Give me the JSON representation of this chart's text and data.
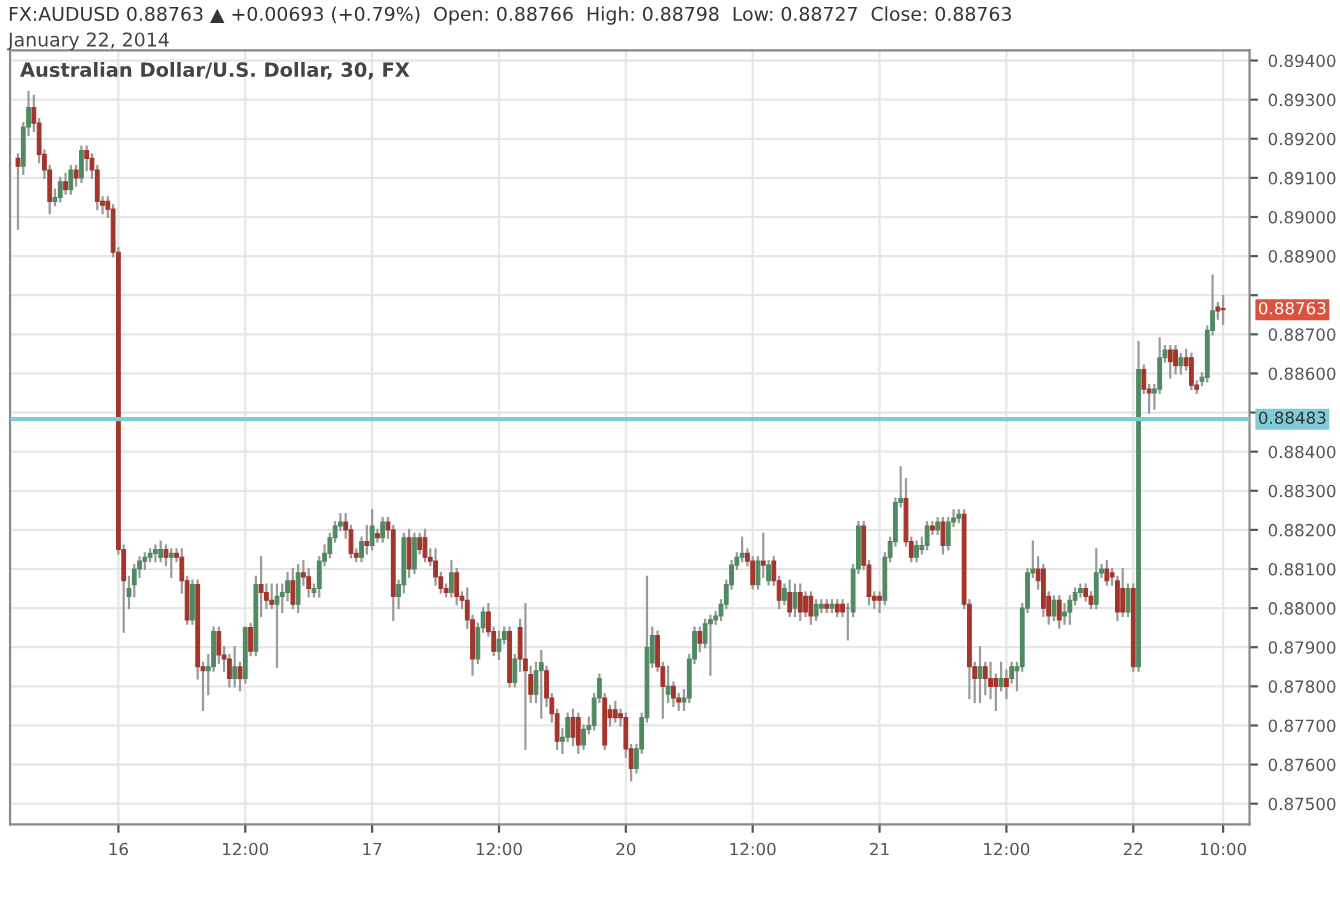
{
  "chart_data": {
    "type": "candlestick",
    "title": "FX:AUDUSD 0.88763 ▲ +0.00693 (+0.79%)  Open: 0.88766  High: 0.88798  Low: 0.88727  Close: 0.88763",
    "subtitle": "January 22, 2014",
    "annotations": [
      "Australian Dollar/U.S. Dollar, 30, FX",
      "0.88763"
    ],
    "categories": [
      null,
      null,
      null,
      null,
      null,
      null,
      null,
      null,
      null,
      null,
      null,
      null,
      null,
      null,
      null,
      null,
      null,
      null,
      null,
      "16",
      null,
      null,
      null,
      null,
      null,
      null,
      null,
      null,
      null,
      null,
      null,
      null,
      null,
      null,
      null,
      null,
      null,
      null,
      null,
      null,
      null,
      null,
      null,
      "12:00",
      null,
      null,
      null,
      null,
      null,
      null,
      null,
      null,
      null,
      null,
      null,
      null,
      null,
      null,
      null,
      null,
      null,
      null,
      null,
      null,
      null,
      null,
      null,
      "17",
      null,
      null,
      null,
      null,
      null,
      null,
      null,
      null,
      null,
      null,
      null,
      null,
      null,
      null,
      null,
      null,
      null,
      null,
      null,
      null,
      null,
      null,
      null,
      "12:00",
      null,
      null,
      null,
      null,
      null,
      null,
      null,
      null,
      null,
      null,
      null,
      null,
      null,
      null,
      null,
      null,
      null,
      null,
      null,
      null,
      null,
      null,
      null,
      "20",
      null,
      null,
      null,
      null,
      null,
      null,
      null,
      null,
      null,
      null,
      null,
      null,
      null,
      null,
      null,
      null,
      null,
      null,
      null,
      null,
      null,
      null,
      null,
      "12:00",
      null,
      null,
      null,
      null,
      null,
      null,
      null,
      null,
      null,
      null,
      null,
      null,
      null,
      null,
      null,
      null,
      null,
      null,
      null,
      null,
      null,
      null,
      null,
      "21",
      null,
      null,
      null,
      null,
      null,
      null,
      null,
      null,
      null,
      null,
      null,
      null,
      null,
      null,
      null,
      null,
      null,
      null,
      null,
      null,
      null,
      null,
      null,
      "12:00",
      null,
      null,
      null,
      null,
      null,
      null,
      null,
      null,
      null,
      null,
      null,
      null,
      null,
      null,
      null,
      null,
      null,
      null,
      null,
      null,
      null,
      null,
      null,
      "22",
      null,
      null,
      null,
      null,
      null,
      null,
      null,
      null,
      null,
      null,
      null,
      null,
      null,
      null,
      null,
      null,
      "10:00"
    ],
    "ohlc": [
      [
        0.8915,
        0.8916,
        0.8897,
        0.8913
      ],
      [
        0.8913,
        0.8924,
        0.8911,
        0.8923
      ],
      [
        0.8923,
        0.8932,
        0.8921,
        0.8928
      ],
      [
        0.8928,
        0.8931,
        0.8922,
        0.8924
      ],
      [
        0.8924,
        0.8925,
        0.8914,
        0.8916
      ],
      [
        0.8916,
        0.8917,
        0.891,
        0.8912
      ],
      [
        0.8912,
        0.8913,
        0.8901,
        0.8904
      ],
      [
        0.8904,
        0.8907,
        0.8903,
        0.8905
      ],
      [
        0.8905,
        0.891,
        0.8904,
        0.8909
      ],
      [
        0.8909,
        0.8911,
        0.8906,
        0.8907
      ],
      [
        0.8907,
        0.8913,
        0.8906,
        0.8912
      ],
      [
        0.8912,
        0.8913,
        0.8908,
        0.891
      ],
      [
        0.891,
        0.8918,
        0.8909,
        0.8917
      ],
      [
        0.8917,
        0.8918,
        0.8912,
        0.8915
      ],
      [
        0.8915,
        0.8916,
        0.891,
        0.8912
      ],
      [
        0.8912,
        0.8913,
        0.8902,
        0.8904
      ],
      [
        0.8904,
        0.8905,
        0.8901,
        0.8903
      ],
      [
        0.8904,
        0.8905,
        0.89,
        0.8902
      ],
      [
        0.8902,
        0.8903,
        0.889,
        0.8891
      ],
      [
        0.8891,
        0.8892,
        0.8814,
        0.8815
      ],
      [
        0.8815,
        0.8816,
        0.8794,
        0.8807
      ],
      [
        0.8803,
        0.8808,
        0.88,
        0.8805
      ],
      [
        0.8806,
        0.8811,
        0.8803,
        0.881
      ],
      [
        0.881,
        0.8813,
        0.8808,
        0.8812
      ],
      [
        0.8812,
        0.8814,
        0.881,
        0.8813
      ],
      [
        0.8813,
        0.8815,
        0.8812,
        0.8814
      ],
      [
        0.8814,
        0.8816,
        0.8812,
        0.8815
      ],
      [
        0.8813,
        0.8817,
        0.8812,
        0.8815
      ],
      [
        0.8815,
        0.8816,
        0.8811,
        0.8813
      ],
      [
        0.8813,
        0.8815,
        0.8808,
        0.8814
      ],
      [
        0.8814,
        0.8815,
        0.8812,
        0.8813
      ],
      [
        0.8813,
        0.8815,
        0.8804,
        0.8807
      ],
      [
        0.8807,
        0.8808,
        0.8796,
        0.8797
      ],
      [
        0.8797,
        0.8807,
        0.8796,
        0.8806
      ],
      [
        0.8806,
        0.8807,
        0.8782,
        0.8785
      ],
      [
        0.8785,
        0.8786,
        0.8774,
        0.8784
      ],
      [
        0.8784,
        0.8788,
        0.8778,
        0.8785
      ],
      [
        0.8785,
        0.8795,
        0.8784,
        0.8794
      ],
      [
        0.8794,
        0.8795,
        0.8786,
        0.8788
      ],
      [
        0.8788,
        0.879,
        0.8784,
        0.8787
      ],
      [
        0.8787,
        0.8788,
        0.878,
        0.8782
      ],
      [
        0.8782,
        0.879,
        0.878,
        0.8785
      ],
      [
        0.8785,
        0.8786,
        0.8779,
        0.8782
      ],
      [
        0.8782,
        0.8795,
        0.8781,
        0.8795
      ],
      [
        0.8795,
        0.8796,
        0.8788,
        0.8789
      ],
      [
        0.8789,
        0.8808,
        0.8788,
        0.8806
      ],
      [
        0.8806,
        0.8813,
        0.8798,
        0.8804
      ],
      [
        0.8804,
        0.8806,
        0.88,
        0.8802
      ],
      [
        0.8802,
        0.8806,
        0.88,
        0.8801
      ],
      [
        0.8801,
        0.8806,
        0.8785,
        0.8803
      ],
      [
        0.8803,
        0.8806,
        0.8799,
        0.8804
      ],
      [
        0.8804,
        0.8809,
        0.8802,
        0.8807
      ],
      [
        0.8807,
        0.881,
        0.88,
        0.8801
      ],
      [
        0.8801,
        0.8811,
        0.8799,
        0.8809
      ],
      [
        0.8809,
        0.8812,
        0.8806,
        0.8808
      ],
      [
        0.8808,
        0.881,
        0.8803,
        0.8805
      ],
      [
        0.8804,
        0.8806,
        0.8803,
        0.8805
      ],
      [
        0.8805,
        0.8813,
        0.8803,
        0.8812
      ],
      [
        0.8812,
        0.8816,
        0.8811,
        0.8814
      ],
      [
        0.8814,
        0.8819,
        0.8813,
        0.8818
      ],
      [
        0.8818,
        0.8822,
        0.8817,
        0.8821
      ],
      [
        0.8821,
        0.8824,
        0.882,
        0.8822
      ],
      [
        0.8822,
        0.8824,
        0.8818,
        0.882
      ],
      [
        0.882,
        0.8821,
        0.8813,
        0.8814
      ],
      [
        0.8814,
        0.8815,
        0.8812,
        0.8813
      ],
      [
        0.8813,
        0.8818,
        0.8812,
        0.8817
      ],
      [
        0.8817,
        0.8821,
        0.8814,
        0.8816
      ],
      [
        0.8816,
        0.8825,
        0.8815,
        0.8821
      ],
      [
        0.8819,
        0.882,
        0.8817,
        0.8818
      ],
      [
        0.8818,
        0.8823,
        0.8817,
        0.8822
      ],
      [
        0.8822,
        0.8823,
        0.8818,
        0.882
      ],
      [
        0.882,
        0.8821,
        0.8797,
        0.8803
      ],
      [
        0.8803,
        0.8807,
        0.88,
        0.8806
      ],
      [
        0.8806,
        0.8819,
        0.8804,
        0.8818
      ],
      [
        0.8818,
        0.882,
        0.8808,
        0.881
      ],
      [
        0.881,
        0.8819,
        0.8809,
        0.8818
      ],
      [
        0.8818,
        0.8819,
        0.8814,
        0.8815
      ],
      [
        0.8818,
        0.882,
        0.8812,
        0.8813
      ],
      [
        0.8813,
        0.8815,
        0.8811,
        0.8812
      ],
      [
        0.8812,
        0.8815,
        0.8806,
        0.8808
      ],
      [
        0.8808,
        0.8809,
        0.8804,
        0.8805
      ],
      [
        0.8805,
        0.8806,
        0.8803,
        0.8804
      ],
      [
        0.8804,
        0.8812,
        0.8803,
        0.8809
      ],
      [
        0.8809,
        0.881,
        0.8801,
        0.8803
      ],
      [
        0.8803,
        0.8804,
        0.88,
        0.8802
      ],
      [
        0.8802,
        0.8805,
        0.8795,
        0.8797
      ],
      [
        0.8797,
        0.8798,
        0.8783,
        0.8787
      ],
      [
        0.8787,
        0.8796,
        0.8786,
        0.8795
      ],
      [
        0.8795,
        0.88,
        0.8794,
        0.8799
      ],
      [
        0.8799,
        0.8801,
        0.8793,
        0.8794
      ],
      [
        0.8794,
        0.8795,
        0.8788,
        0.8789
      ],
      [
        0.8789,
        0.8794,
        0.8787,
        0.8792
      ],
      [
        0.8792,
        0.8795,
        0.8791,
        0.8794
      ],
      [
        0.8794,
        0.8795,
        0.878,
        0.8781
      ],
      [
        0.8781,
        0.8788,
        0.878,
        0.8787
      ],
      [
        0.8795,
        0.8797,
        0.8784,
        0.8787
      ],
      [
        0.8787,
        0.8801,
        0.8764,
        0.8784
      ],
      [
        0.8783,
        0.8785,
        0.8776,
        0.8778
      ],
      [
        0.8778,
        0.8786,
        0.8776,
        0.8784
      ],
      [
        0.8784,
        0.8789,
        0.8772,
        0.8786
      ],
      [
        0.8784,
        0.8785,
        0.8775,
        0.8777
      ],
      [
        0.8777,
        0.8778,
        0.8771,
        0.8773
      ],
      [
        0.8773,
        0.8774,
        0.8764,
        0.8766
      ],
      [
        0.8766,
        0.8769,
        0.8763,
        0.8767
      ],
      [
        0.8767,
        0.8773,
        0.8766,
        0.8772
      ],
      [
        0.8772,
        0.8774,
        0.8765,
        0.8767
      ],
      [
        0.8772,
        0.8773,
        0.8763,
        0.8765
      ],
      [
        0.8765,
        0.877,
        0.8764,
        0.8769
      ],
      [
        0.8769,
        0.8772,
        0.8768,
        0.877
      ],
      [
        0.877,
        0.8778,
        0.8769,
        0.8777
      ],
      [
        0.8777,
        0.8783,
        0.8776,
        0.8782
      ],
      [
        0.8777,
        0.8778,
        0.8764,
        0.8765
      ],
      [
        0.8774,
        0.8775,
        0.877,
        0.8772
      ],
      [
        0.8774,
        0.8776,
        0.8771,
        0.8772
      ],
      [
        0.8773,
        0.8774,
        0.877,
        0.8772
      ],
      [
        0.8772,
        0.8773,
        0.8762,
        0.8764
      ],
      [
        0.8764,
        0.8765,
        0.8756,
        0.8759
      ],
      [
        0.8759,
        0.8765,
        0.8758,
        0.8764
      ],
      [
        0.8764,
        0.8773,
        0.8763,
        0.8772
      ],
      [
        0.8772,
        0.8808,
        0.8771,
        0.879
      ],
      [
        0.8786,
        0.8795,
        0.8785,
        0.8793
      ],
      [
        0.8793,
        0.8794,
        0.8784,
        0.8785
      ],
      [
        0.8785,
        0.8786,
        0.8772,
        0.878
      ],
      [
        0.8778,
        0.8785,
        0.8776,
        0.878
      ],
      [
        0.878,
        0.8781,
        0.8775,
        0.8777
      ],
      [
        0.8777,
        0.8778,
        0.8774,
        0.8776
      ],
      [
        0.8776,
        0.8779,
        0.8774,
        0.8777
      ],
      [
        0.8777,
        0.8788,
        0.8776,
        0.8787
      ],
      [
        0.8787,
        0.8795,
        0.8786,
        0.8794
      ],
      [
        0.8794,
        0.8795,
        0.8789,
        0.8791
      ],
      [
        0.8791,
        0.8797,
        0.879,
        0.8796
      ],
      [
        0.8796,
        0.8798,
        0.8783,
        0.8797
      ],
      [
        0.8797,
        0.8799,
        0.8796,
        0.8798
      ],
      [
        0.8798,
        0.8802,
        0.8797,
        0.8801
      ],
      [
        0.8801,
        0.8807,
        0.88,
        0.8806
      ],
      [
        0.8806,
        0.8812,
        0.8805,
        0.8811
      ],
      [
        0.8811,
        0.8814,
        0.881,
        0.8813
      ],
      [
        0.8813,
        0.8818,
        0.8812,
        0.8814
      ],
      [
        0.8814,
        0.8815,
        0.8811,
        0.8812
      ],
      [
        0.8812,
        0.8813,
        0.8805,
        0.8806
      ],
      [
        0.8806,
        0.8813,
        0.8805,
        0.8812
      ],
      [
        0.8812,
        0.8819,
        0.8808,
        0.8811
      ],
      [
        0.8807,
        0.8812,
        0.8806,
        0.8811
      ],
      [
        0.8812,
        0.8813,
        0.8806,
        0.8807
      ],
      [
        0.8807,
        0.8808,
        0.88,
        0.8802
      ],
      [
        0.8802,
        0.8806,
        0.8801,
        0.8805
      ],
      [
        0.8804,
        0.8807,
        0.8798,
        0.8799
      ],
      [
        0.88,
        0.8806,
        0.8798,
        0.8804
      ],
      [
        0.8804,
        0.8806,
        0.8797,
        0.8799
      ],
      [
        0.8803,
        0.8804,
        0.8798,
        0.8799
      ],
      [
        0.8803,
        0.8804,
        0.8796,
        0.8798
      ],
      [
        0.8798,
        0.8802,
        0.8797,
        0.8801
      ],
      [
        0.88,
        0.8802,
        0.8799,
        0.8801
      ],
      [
        0.8801,
        0.8802,
        0.8799,
        0.88
      ],
      [
        0.88,
        0.8802,
        0.8799,
        0.8801
      ],
      [
        0.8801,
        0.8802,
        0.8798,
        0.8799
      ],
      [
        0.8801,
        0.8802,
        0.8798,
        0.8799
      ],
      [
        0.88,
        0.8801,
        0.8792,
        0.88
      ],
      [
        0.8799,
        0.8811,
        0.8798,
        0.881
      ],
      [
        0.881,
        0.8822,
        0.8809,
        0.8821
      ],
      [
        0.8821,
        0.8822,
        0.881,
        0.8811
      ],
      [
        0.8811,
        0.8812,
        0.8801,
        0.8803
      ],
      [
        0.8803,
        0.8804,
        0.88,
        0.8802
      ],
      [
        0.8803,
        0.8804,
        0.8799,
        0.8802
      ],
      [
        0.8802,
        0.8814,
        0.8801,
        0.8813
      ],
      [
        0.8813,
        0.8818,
        0.8812,
        0.8817
      ],
      [
        0.8817,
        0.8828,
        0.8816,
        0.8827
      ],
      [
        0.8827,
        0.8836,
        0.8826,
        0.8828
      ],
      [
        0.8828,
        0.8833,
        0.8816,
        0.8817
      ],
      [
        0.8817,
        0.8818,
        0.8812,
        0.8813
      ],
      [
        0.8813,
        0.8817,
        0.8812,
        0.8816
      ],
      [
        0.8815,
        0.8818,
        0.8814,
        0.8816
      ],
      [
        0.8816,
        0.8822,
        0.8815,
        0.8821
      ],
      [
        0.8821,
        0.8822,
        0.8819,
        0.882
      ],
      [
        0.882,
        0.8823,
        0.8819,
        0.8822
      ],
      [
        0.8822,
        0.8823,
        0.8814,
        0.8816
      ],
      [
        0.8816,
        0.8823,
        0.8815,
        0.8822
      ],
      [
        0.8822,
        0.8825,
        0.8821,
        0.8823
      ],
      [
        0.8823,
        0.8825,
        0.8822,
        0.8824
      ],
      [
        0.8824,
        0.8825,
        0.88,
        0.8801
      ],
      [
        0.8801,
        0.8802,
        0.8777,
        0.8785
      ],
      [
        0.8785,
        0.8786,
        0.8776,
        0.8782
      ],
      [
        0.8782,
        0.879,
        0.8776,
        0.8785
      ],
      [
        0.8785,
        0.8786,
        0.8778,
        0.8782
      ],
      [
        0.8782,
        0.8786,
        0.8777,
        0.878
      ],
      [
        0.8782,
        0.8783,
        0.8774,
        0.878
      ],
      [
        0.878,
        0.8786,
        0.8779,
        0.8782
      ],
      [
        0.8782,
        0.8784,
        0.8777,
        0.878
      ],
      [
        0.8782,
        0.8786,
        0.8781,
        0.8785
      ],
      [
        0.8784,
        0.8786,
        0.8779,
        0.8785
      ],
      [
        0.8785,
        0.8801,
        0.8784,
        0.88
      ],
      [
        0.88,
        0.881,
        0.8799,
        0.8809
      ],
      [
        0.8809,
        0.8817,
        0.8808,
        0.881
      ],
      [
        0.881,
        0.8813,
        0.8805,
        0.8807
      ],
      [
        0.881,
        0.8811,
        0.8798,
        0.88
      ],
      [
        0.8803,
        0.8804,
        0.8796,
        0.8798
      ],
      [
        0.8798,
        0.8803,
        0.8797,
        0.8802
      ],
      [
        0.8802,
        0.8803,
        0.8795,
        0.8797
      ],
      [
        0.8798,
        0.8801,
        0.8796,
        0.8799
      ],
      [
        0.8799,
        0.8803,
        0.8796,
        0.8802
      ],
      [
        0.8802,
        0.8805,
        0.8801,
        0.8804
      ],
      [
        0.8804,
        0.8806,
        0.8803,
        0.8805
      ],
      [
        0.8805,
        0.8806,
        0.8802,
        0.8803
      ],
      [
        0.8803,
        0.8804,
        0.88,
        0.8801
      ],
      [
        0.8801,
        0.8815,
        0.88,
        0.8809
      ],
      [
        0.8809,
        0.8811,
        0.8808,
        0.881
      ],
      [
        0.881,
        0.8812,
        0.8806,
        0.8807
      ],
      [
        0.8809,
        0.881,
        0.8806,
        0.8808
      ],
      [
        0.8807,
        0.8808,
        0.8797,
        0.8799
      ],
      [
        0.8805,
        0.881,
        0.8798,
        0.8799
      ],
      [
        0.8799,
        0.8806,
        0.8798,
        0.8805
      ],
      [
        0.8805,
        0.8806,
        0.8784,
        0.8785
      ],
      [
        0.8785,
        0.8868,
        0.8784,
        0.8861
      ],
      [
        0.8861,
        0.8862,
        0.8855,
        0.8856
      ],
      [
        0.8856,
        0.8857,
        0.885,
        0.8855
      ],
      [
        0.8855,
        0.8857,
        0.8851,
        0.8856
      ],
      [
        0.8856,
        0.8869,
        0.8855,
        0.8864
      ],
      [
        0.8864,
        0.8867,
        0.8863,
        0.8866
      ],
      [
        0.8866,
        0.8867,
        0.8859,
        0.8863
      ],
      [
        0.8866,
        0.8867,
        0.886,
        0.8862
      ],
      [
        0.8862,
        0.8865,
        0.886,
        0.8864
      ],
      [
        0.8864,
        0.8866,
        0.8861,
        0.8862
      ],
      [
        0.8864,
        0.8865,
        0.8856,
        0.8857
      ],
      [
        0.8857,
        0.8858,
        0.8855,
        0.8856
      ],
      [
        0.8858,
        0.886,
        0.8857,
        0.8859
      ],
      [
        0.8859,
        0.8872,
        0.8858,
        0.8871
      ],
      [
        0.8871,
        0.8885,
        0.887,
        0.8876
      ],
      [
        0.8877,
        0.8878,
        0.8874,
        0.8876
      ],
      [
        0.88766,
        0.88798,
        0.88727,
        0.88763
      ]
    ],
    "ylim": [
      0.87447,
      0.89426
    ],
    "yticks": [
      {
        "value": 0.875,
        "label": "0.87500"
      },
      {
        "value": 0.876,
        "label": "0.87600"
      },
      {
        "value": 0.877,
        "label": "0.87700"
      },
      {
        "value": 0.878,
        "label": "0.87800"
      },
      {
        "value": 0.879,
        "label": "0.87900"
      },
      {
        "value": 0.88,
        "label": "0.88000"
      },
      {
        "value": 0.881,
        "label": "0.88100"
      },
      {
        "value": 0.882,
        "label": "0.88200"
      },
      {
        "value": 0.883,
        "label": "0.88300"
      },
      {
        "value": 0.884,
        "label": "0.88400"
      },
      {
        "value": 0.885,
        "label": null
      },
      {
        "value": 0.886,
        "label": "0.88600"
      },
      {
        "value": 0.887,
        "label": "0.88700"
      },
      {
        "value": 0.888,
        "label": null
      },
      {
        "value": 0.889,
        "label": "0.88900"
      },
      {
        "value": 0.89,
        "label": "0.89000"
      },
      {
        "value": 0.891,
        "label": "0.89100"
      },
      {
        "value": 0.892,
        "label": "0.89200"
      },
      {
        "value": 0.893,
        "label": "0.89300"
      },
      {
        "value": 0.894,
        "label": "0.89400"
      }
    ],
    "ref_lines": [
      {
        "axis": "y",
        "value": 0.88483,
        "label": "0.88483",
        "color": "#7fcbd9"
      }
    ],
    "grid": true
  }
}
